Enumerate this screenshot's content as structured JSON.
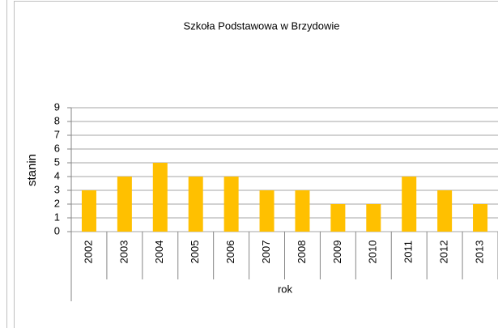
{
  "chart_data": {
    "type": "bar",
    "title": "Szkoła Podstawowa w Brzydowie",
    "x_label": "rok",
    "y_label": "stanin",
    "categories": [
      "2002",
      "2003",
      "2004",
      "2005",
      "2006",
      "2007",
      "2008",
      "2009",
      "2010",
      "2011",
      "2012",
      "2013"
    ],
    "values": [
      3,
      4,
      5,
      4,
      4,
      3,
      3,
      2,
      2,
      4,
      3,
      2
    ],
    "color": "#ffc000",
    "ylim": [
      0,
      9
    ],
    "yticks": [
      0,
      1,
      2,
      3,
      4,
      5,
      6,
      7,
      8,
      9
    ],
    "grid": true
  }
}
